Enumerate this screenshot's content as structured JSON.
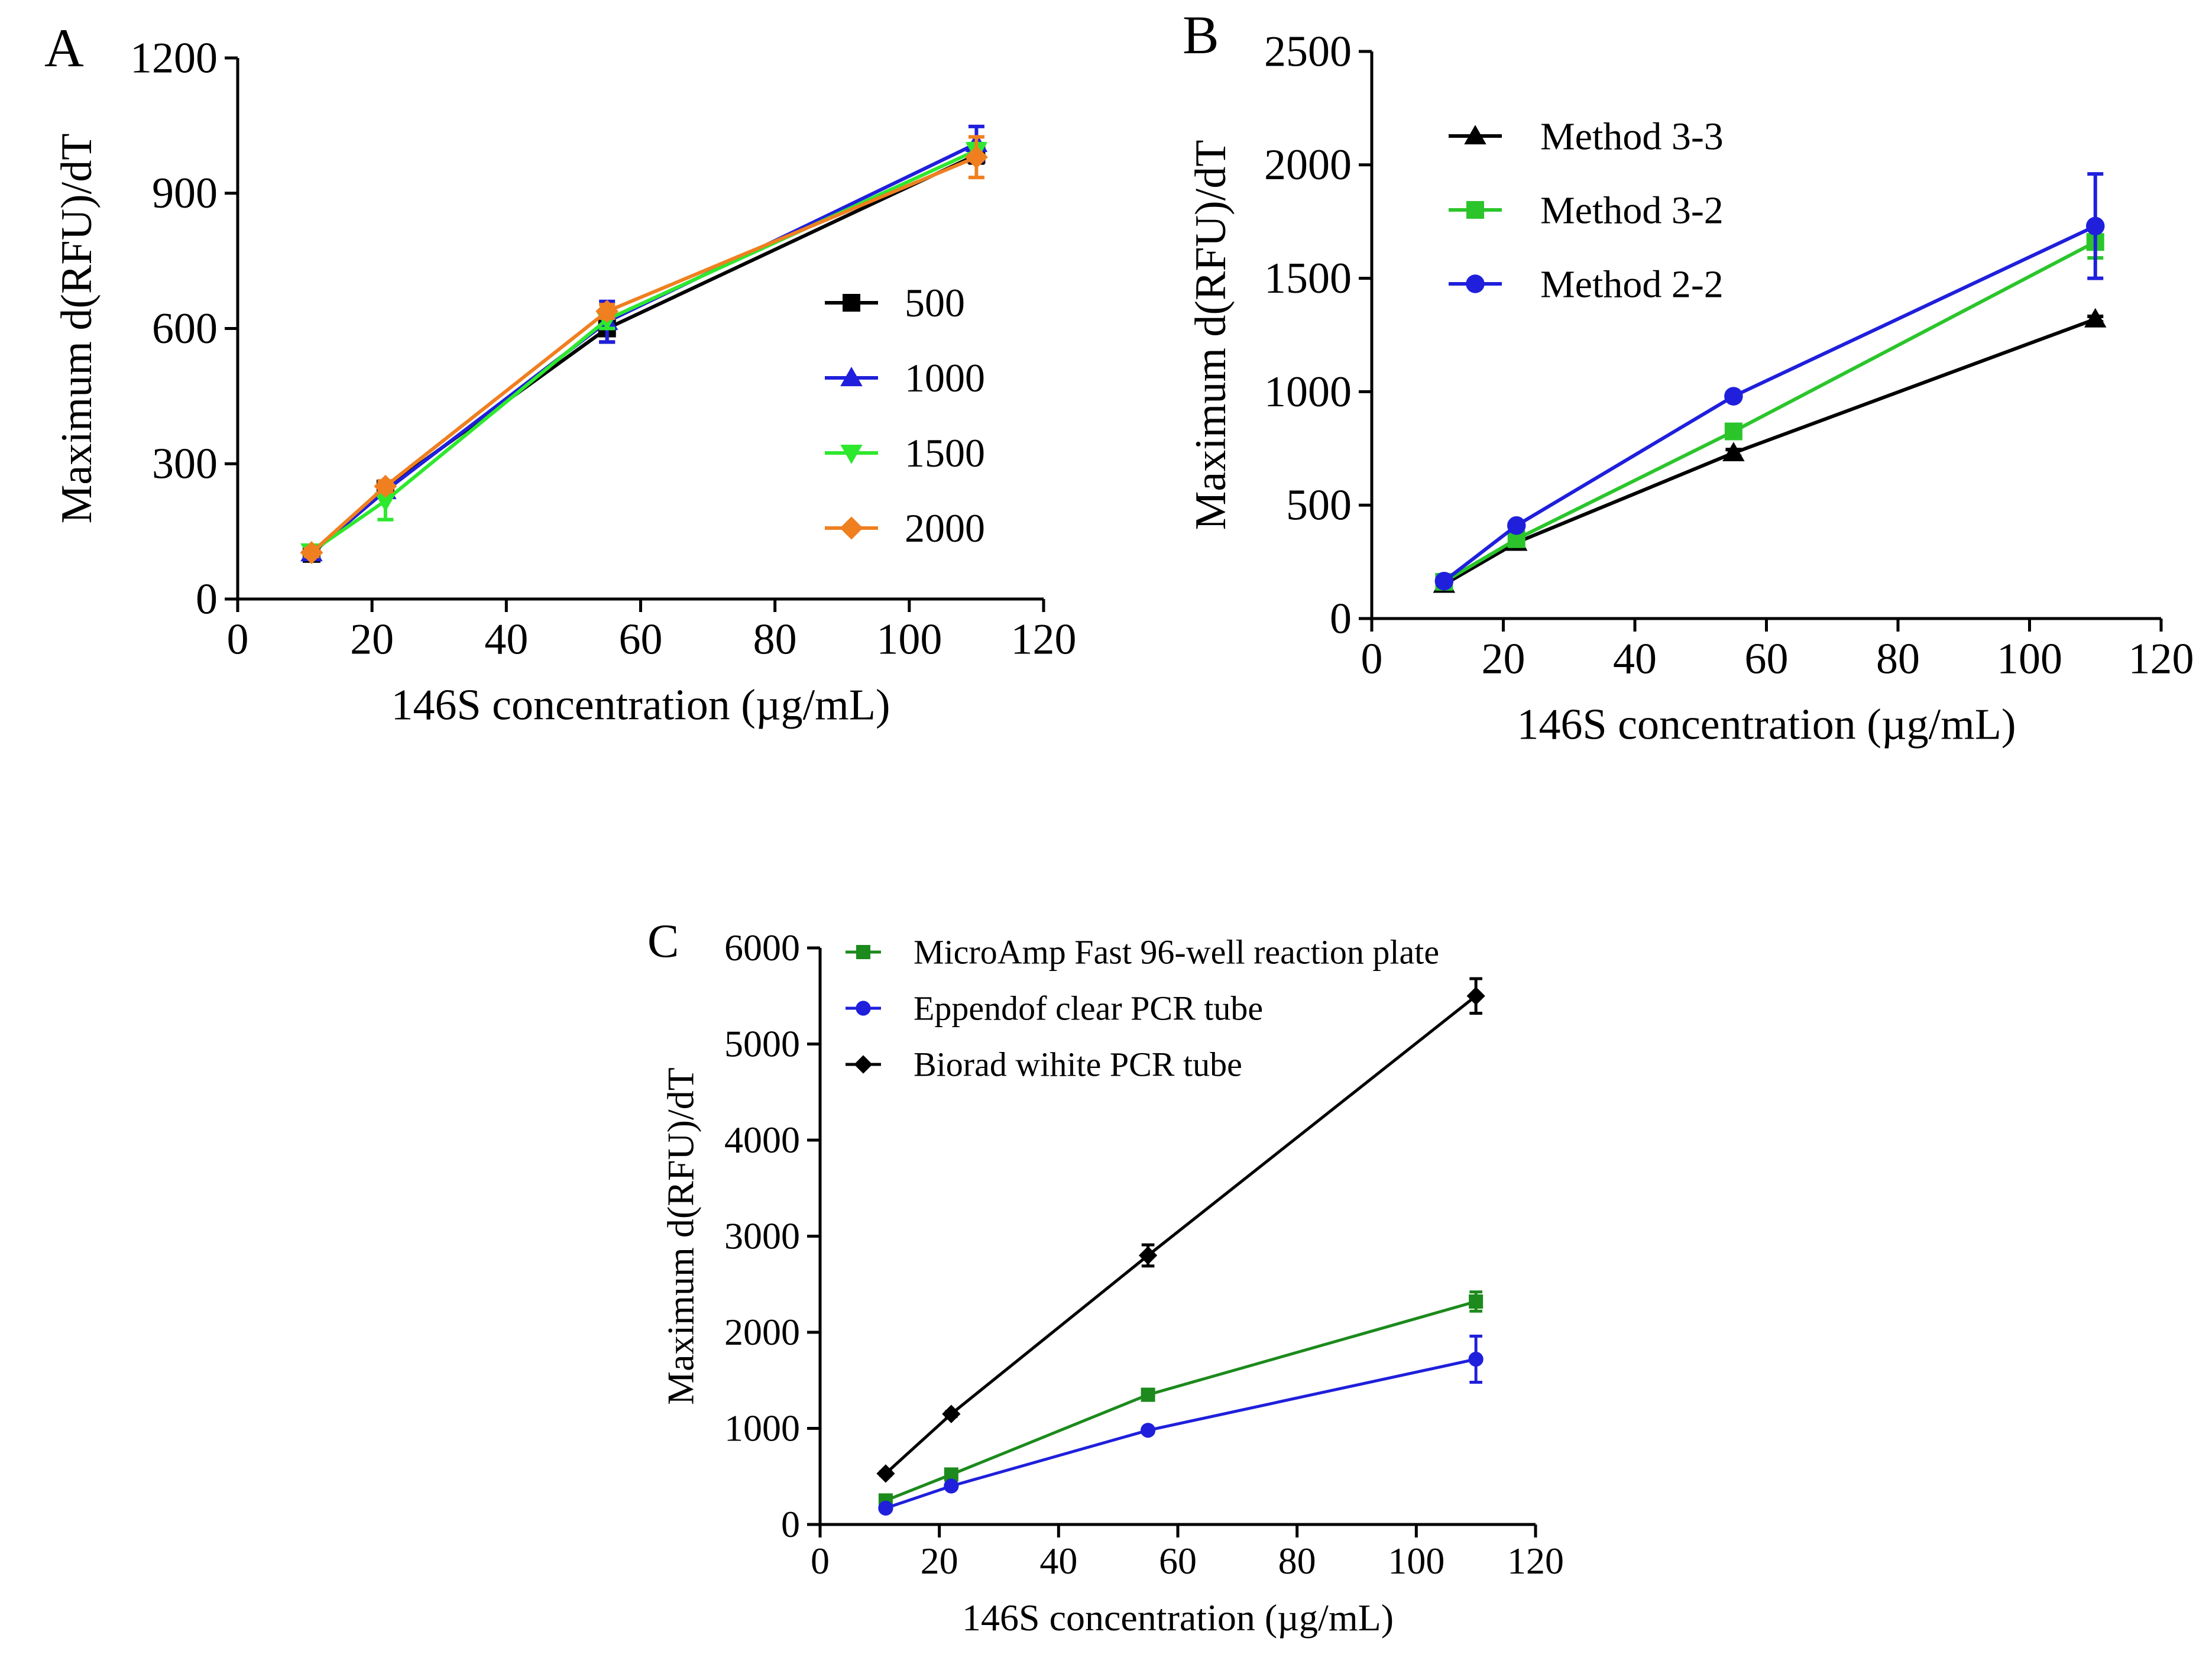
{
  "figure": {
    "background": "#ffffff"
  },
  "chart_data": [
    {
      "id": "A",
      "panel_label": "A",
      "type": "line",
      "xlabel": "146S concentration (µg/mL)",
      "ylabel": "Maximum d(RFU)/dT",
      "xlim": [
        0,
        120
      ],
      "ylim": [
        0,
        1200
      ],
      "xticks": [
        "0",
        "20",
        "40",
        "60",
        "80",
        "100",
        "120"
      ],
      "yticks": [
        "0",
        "300",
        "600",
        "900",
        "1200"
      ],
      "x": [
        11,
        22,
        55,
        110
      ],
      "legend_position": "right-middle",
      "series": [
        {
          "name": "500",
          "color": "#000000",
          "marker": "square",
          "values": [
            100,
            245,
            600,
            985
          ],
          "errors": [
            8,
            12,
            30,
            18
          ]
        },
        {
          "name": "1000",
          "color": "#1f1fdc",
          "marker": "triangle-up",
          "values": [
            102,
            240,
            615,
            1010
          ],
          "errors": [
            8,
            12,
            45,
            38
          ]
        },
        {
          "name": "1500",
          "color": "#2ee82e",
          "marker": "triangle-down",
          "values": [
            105,
            218,
            620,
            995
          ],
          "errors": [
            10,
            42,
            20,
            15
          ]
        },
        {
          "name": "2000",
          "color": "#f07f20",
          "marker": "diamond",
          "values": [
            103,
            250,
            638,
            980
          ],
          "errors": [
            8,
            12,
            15,
            45
          ]
        }
      ]
    },
    {
      "id": "B",
      "panel_label": "B",
      "type": "line",
      "xlabel": "146S concentration (µg/mL)",
      "ylabel": "Maximum d(RFU)/dT",
      "xlim": [
        0,
        120
      ],
      "ylim": [
        0,
        2500
      ],
      "xticks": [
        "0",
        "20",
        "40",
        "60",
        "80",
        "100",
        "120"
      ],
      "yticks": [
        "0",
        "500",
        "1000",
        "1500",
        "2000",
        "2500"
      ],
      "x": [
        11,
        22,
        55,
        110
      ],
      "legend_position": "top-left",
      "series": [
        {
          "name": "Method 3-3",
          "color": "#000000",
          "marker": "triangle-up",
          "values": [
            150,
            335,
            730,
            1320
          ],
          "errors": [
            10,
            10,
            15,
            12
          ]
        },
        {
          "name": "Method 3-2",
          "color": "#2bc52b",
          "marker": "square",
          "values": [
            162,
            350,
            825,
            1660
          ],
          "errors": [
            12,
            12,
            20,
            70
          ]
        },
        {
          "name": "Method 2-2",
          "color": "#1f1fdc",
          "marker": "circle",
          "values": [
            165,
            410,
            980,
            1730
          ],
          "errors": [
            10,
            12,
            15,
            230
          ]
        }
      ]
    },
    {
      "id": "C",
      "panel_label": "C",
      "type": "line",
      "xlabel": "146S concentration (µg/mL)",
      "ylabel": "Maximum d(RFU)/dT",
      "xlim": [
        0,
        120
      ],
      "ylim": [
        0,
        6000
      ],
      "xticks": [
        "0",
        "20",
        "40",
        "60",
        "80",
        "100",
        "120"
      ],
      "yticks": [
        "0",
        "1000",
        "2000",
        "3000",
        "4000",
        "5000",
        "6000"
      ],
      "x": [
        11,
        22,
        55,
        110
      ],
      "legend_position": "top-left",
      "series": [
        {
          "name": "MicroAmp Fast 96-well reaction plate",
          "color": "#1c8a1c",
          "marker": "square",
          "values": [
            250,
            520,
            1350,
            2320
          ],
          "errors": [
            20,
            25,
            30,
            100
          ]
        },
        {
          "name": "Eppendof clear PCR tube",
          "color": "#1f1fdc",
          "marker": "circle",
          "values": [
            170,
            400,
            980,
            1720
          ],
          "errors": [
            15,
            20,
            25,
            240
          ]
        },
        {
          "name": "Biorad wihite PCR tube",
          "color": "#000000",
          "marker": "diamond",
          "values": [
            530,
            1150,
            2800,
            5500
          ],
          "errors": [
            20,
            25,
            110,
            180
          ]
        }
      ]
    }
  ]
}
